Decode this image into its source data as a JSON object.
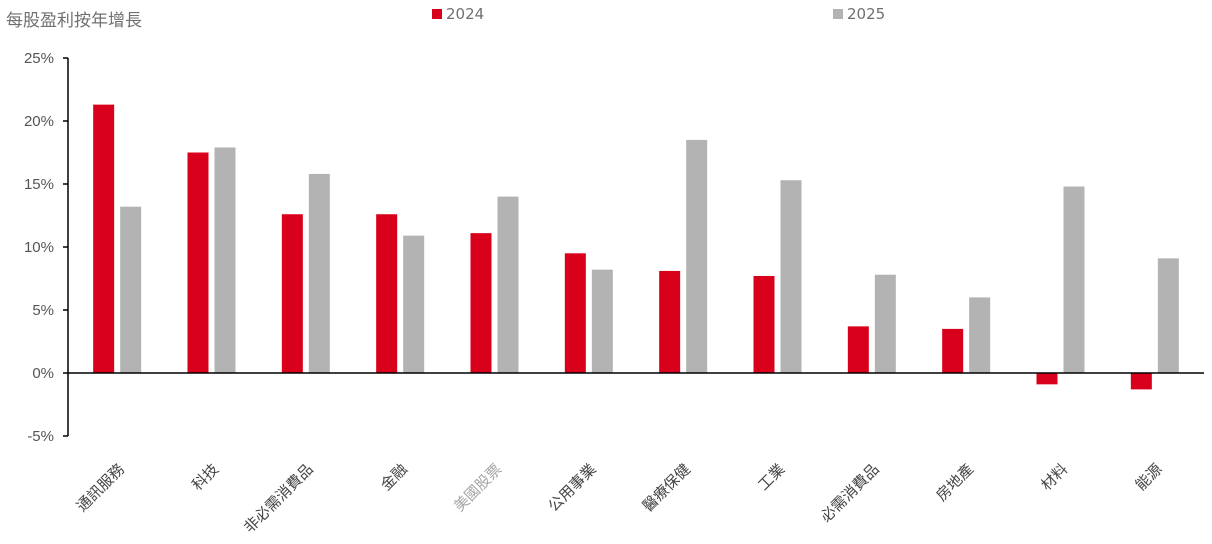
{
  "chart_data": {
    "type": "bar",
    "title": "每股盈利按年增長",
    "xlabel": "",
    "ylabel": "",
    "categories": [
      "通訊服務",
      "科技",
      "非必需消費品",
      "金融",
      "美國股票",
      "公用事業",
      "醫療保健",
      "工業",
      "必需消費品",
      "房地產",
      "材料",
      "能源"
    ],
    "series": [
      {
        "name": "2024",
        "color": "#d9001b",
        "values": [
          21.3,
          17.5,
          12.6,
          12.6,
          11.1,
          9.5,
          8.1,
          7.7,
          3.7,
          3.5,
          -0.9,
          -1.3
        ]
      },
      {
        "name": "2025",
        "color": "#b3b3b3",
        "values": [
          13.2,
          17.9,
          15.8,
          10.9,
          14.0,
          8.2,
          18.5,
          15.3,
          7.8,
          6.0,
          14.8,
          9.1
        ]
      }
    ],
    "ylim": [
      -5,
      25
    ],
    "yticks": [
      -5,
      0,
      5,
      10,
      15,
      20,
      25
    ],
    "ytick_labels": [
      "-5%",
      "0%",
      "5%",
      "10%",
      "15%",
      "20%",
      "25%"
    ],
    "highlight_category": "美國股票",
    "highlight_color": "#a6a6a6",
    "tick_color": "#444444",
    "grid": false,
    "legend_position": "top-center"
  }
}
